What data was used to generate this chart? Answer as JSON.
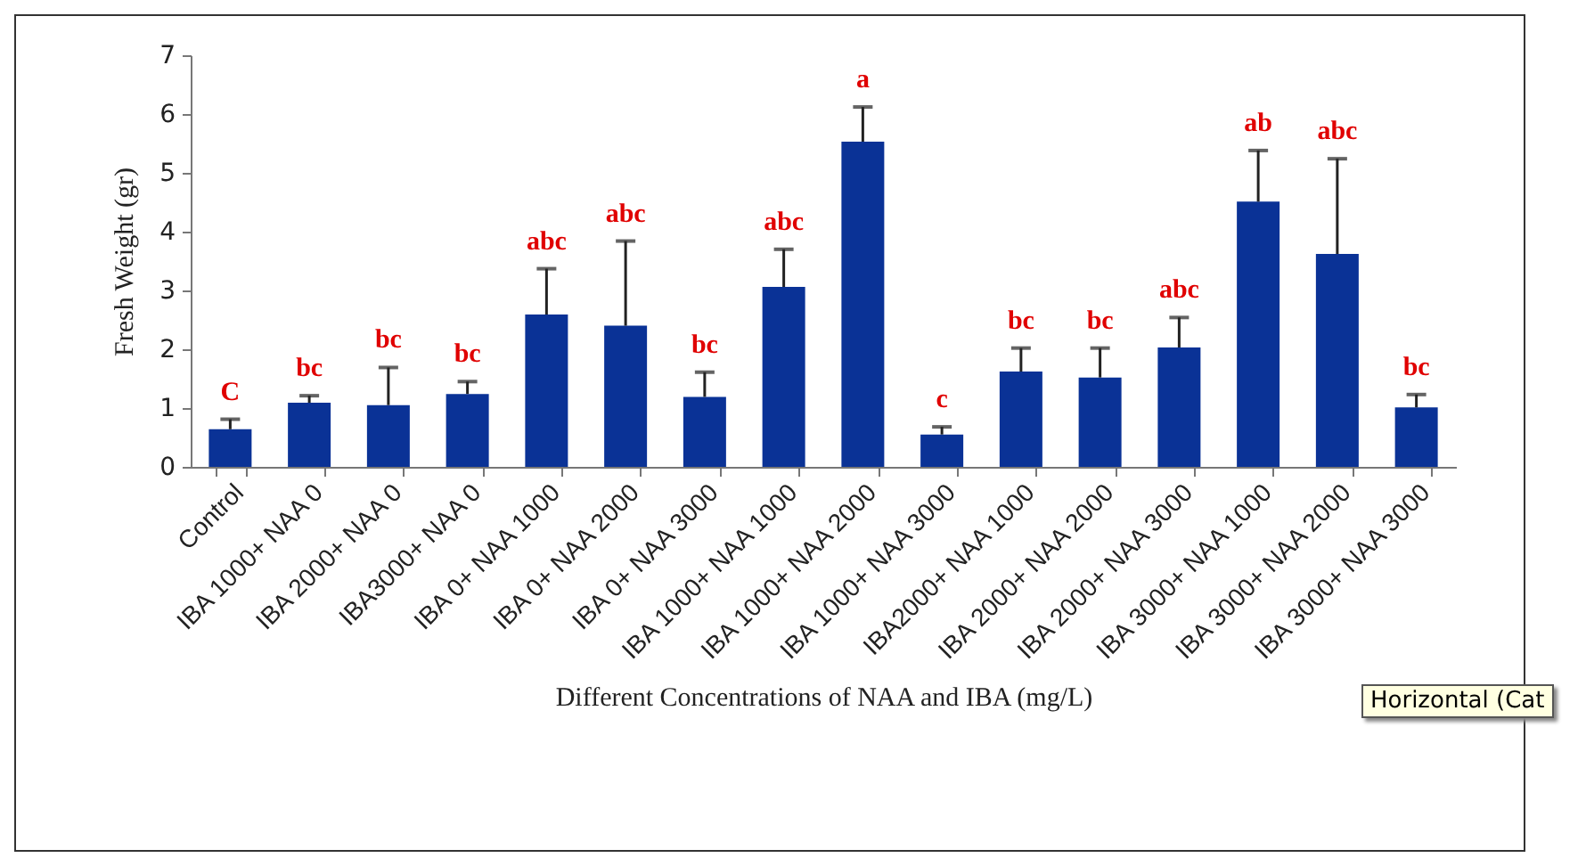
{
  "chart_data": {
    "type": "bar",
    "xlabel": "Different Concentrations of NAA and IBA (mg/L)",
    "ylabel": "Fresh Weight (gr)",
    "categories": [
      "Control",
      "IBA 1000+ NAA 0",
      "IBA 2000+ NAA 0",
      "IBA3000+ NAA 0",
      "IBA 0+ NAA 1000",
      "IBA 0+ NAA 2000",
      "IBA 0+ NAA 3000",
      "IBA 1000+ NAA 1000",
      "IBA 1000+ NAA 2000",
      "IBA 1000+ NAA 3000",
      "IBA2000+ NAA 1000",
      "IBA 2000+ NAA 2000",
      "IBA 2000+ NAA 3000",
      "IBA 3000+ NAA 1000",
      "IBA 3000+ NAA 2000",
      "IBA 3000+ NAA 3000"
    ],
    "series": [
      {
        "color": "#0a3296",
        "values": [
          0.64,
          1.09,
          1.05,
          1.24,
          2.59,
          2.4,
          1.19,
          3.06,
          5.53,
          0.55,
          1.62,
          1.52,
          2.03,
          4.51,
          3.62,
          1.01
        ],
        "errors": [
          [
            0.64,
            0.81
          ],
          [
            1.09,
            1.21
          ],
          [
            1.05,
            1.69
          ],
          [
            1.24,
            1.45
          ],
          [
            2.59,
            3.37
          ],
          [
            2.4,
            3.84
          ],
          [
            1.19,
            1.61
          ],
          [
            3.06,
            3.7
          ],
          [
            5.53,
            6.12
          ],
          [
            0.55,
            0.68
          ],
          [
            1.62,
            2.02
          ],
          [
            1.52,
            2.02
          ],
          [
            2.03,
            2.54
          ],
          [
            4.51,
            5.38
          ],
          [
            3.62,
            5.24
          ],
          [
            1.01,
            1.23
          ]
        ]
      }
    ],
    "ylim": [
      0,
      7
    ],
    "yticks": [
      0,
      1,
      2,
      3,
      4,
      5,
      6,
      7
    ],
    "grid": false,
    "annotations": [
      {
        "text": "C",
        "x": "Control",
        "y": 0.81
      },
      {
        "text": "bc",
        "x": "IBA 1000+ NAA 0",
        "y": 1.21
      },
      {
        "text": "bc",
        "x": "IBA 2000+ NAA 0",
        "y": 1.69
      },
      {
        "text": "bc",
        "x": "IBA3000+ NAA 0",
        "y": 1.45
      },
      {
        "text": "abc",
        "x": "IBA 0+ NAA 1000",
        "y": 3.37
      },
      {
        "text": "abc",
        "x": "IBA 0+ NAA 2000",
        "y": 3.84
      },
      {
        "text": "bc",
        "x": "IBA 0+ NAA 3000",
        "y": 1.61
      },
      {
        "text": "abc",
        "x": "IBA 1000+ NAA 1000",
        "y": 3.7
      },
      {
        "text": "a",
        "x": "IBA 1000+ NAA 2000",
        "y": 6.12
      },
      {
        "text": "c",
        "x": "IBA 1000+ NAA 3000",
        "y": 0.68
      },
      {
        "text": "bc",
        "x": "IBA2000+ NAA 1000",
        "y": 2.02
      },
      {
        "text": "bc",
        "x": "IBA 2000+ NAA 2000",
        "y": 2.02
      },
      {
        "text": "abc",
        "x": "IBA 2000+ NAA 3000",
        "y": 2.54
      },
      {
        "text": "ab",
        "x": "IBA 3000+ NAA 1000",
        "y": 5.38
      },
      {
        "text": "abc",
        "x": "IBA 3000+ NAA 2000",
        "y": 5.24
      },
      {
        "text": "bc",
        "x": "IBA 3000+ NAA 3000",
        "y": 1.23
      },
      "Horizontal (Cat"
    ]
  }
}
